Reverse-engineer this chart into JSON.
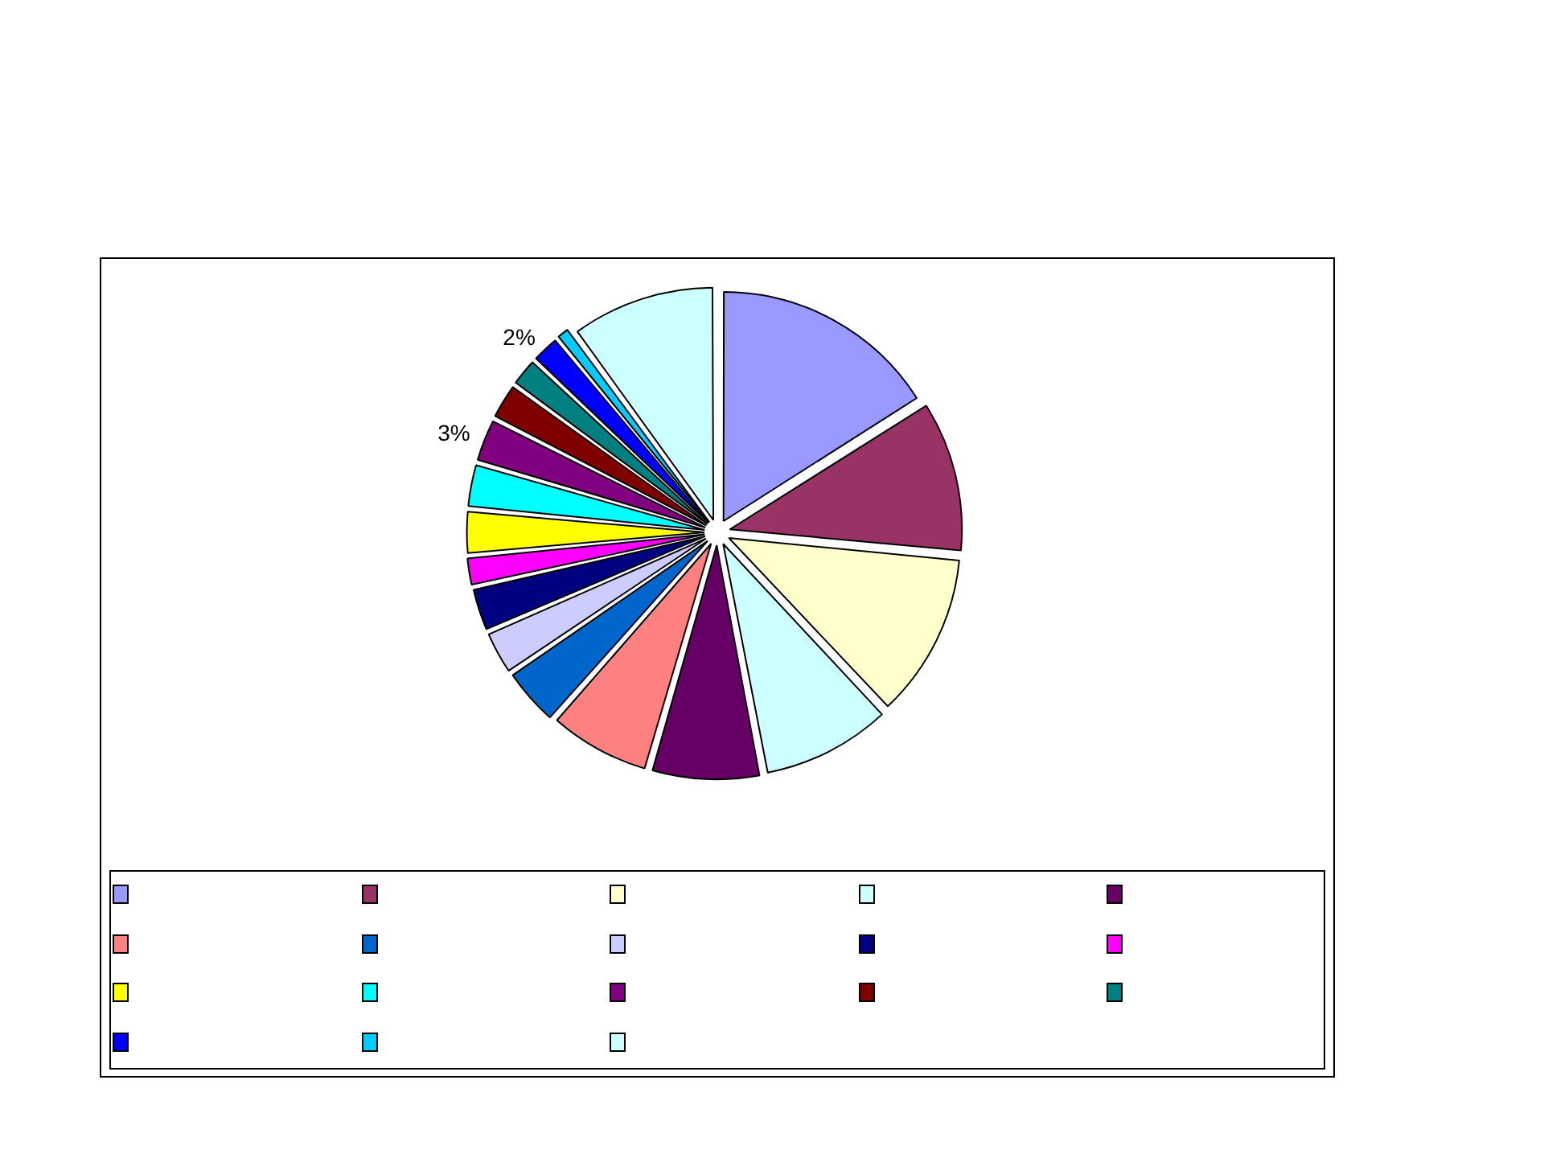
{
  "chart_data": {
    "type": "pie",
    "categories": [
      null,
      null,
      null,
      null,
      null,
      null,
      null,
      null,
      null,
      null,
      null,
      null,
      null,
      null,
      null,
      null,
      null,
      null
    ],
    "values": [
      16,
      10.5,
      11.5,
      9,
      7.5,
      7,
      4,
      3,
      3,
      2,
      3,
      3,
      3,
      2.5,
      2,
      2,
      1,
      10
    ],
    "colors": [
      "#9999ff",
      "#993366",
      "#ffffcc",
      "#ccffff",
      "#660066",
      "#ff8080",
      "#0066cc",
      "#ccccff",
      "#000080",
      "#ff00ff",
      "#ffff00",
      "#00ffff",
      "#800080",
      "#800000",
      "#008080",
      "#0000ff",
      "#00ccff",
      "#ccffff"
    ],
    "value_labels": [
      null,
      null,
      null,
      null,
      null,
      null,
      null,
      null,
      null,
      null,
      null,
      null,
      "3%",
      null,
      null,
      "2%",
      null,
      null
    ]
  }
}
